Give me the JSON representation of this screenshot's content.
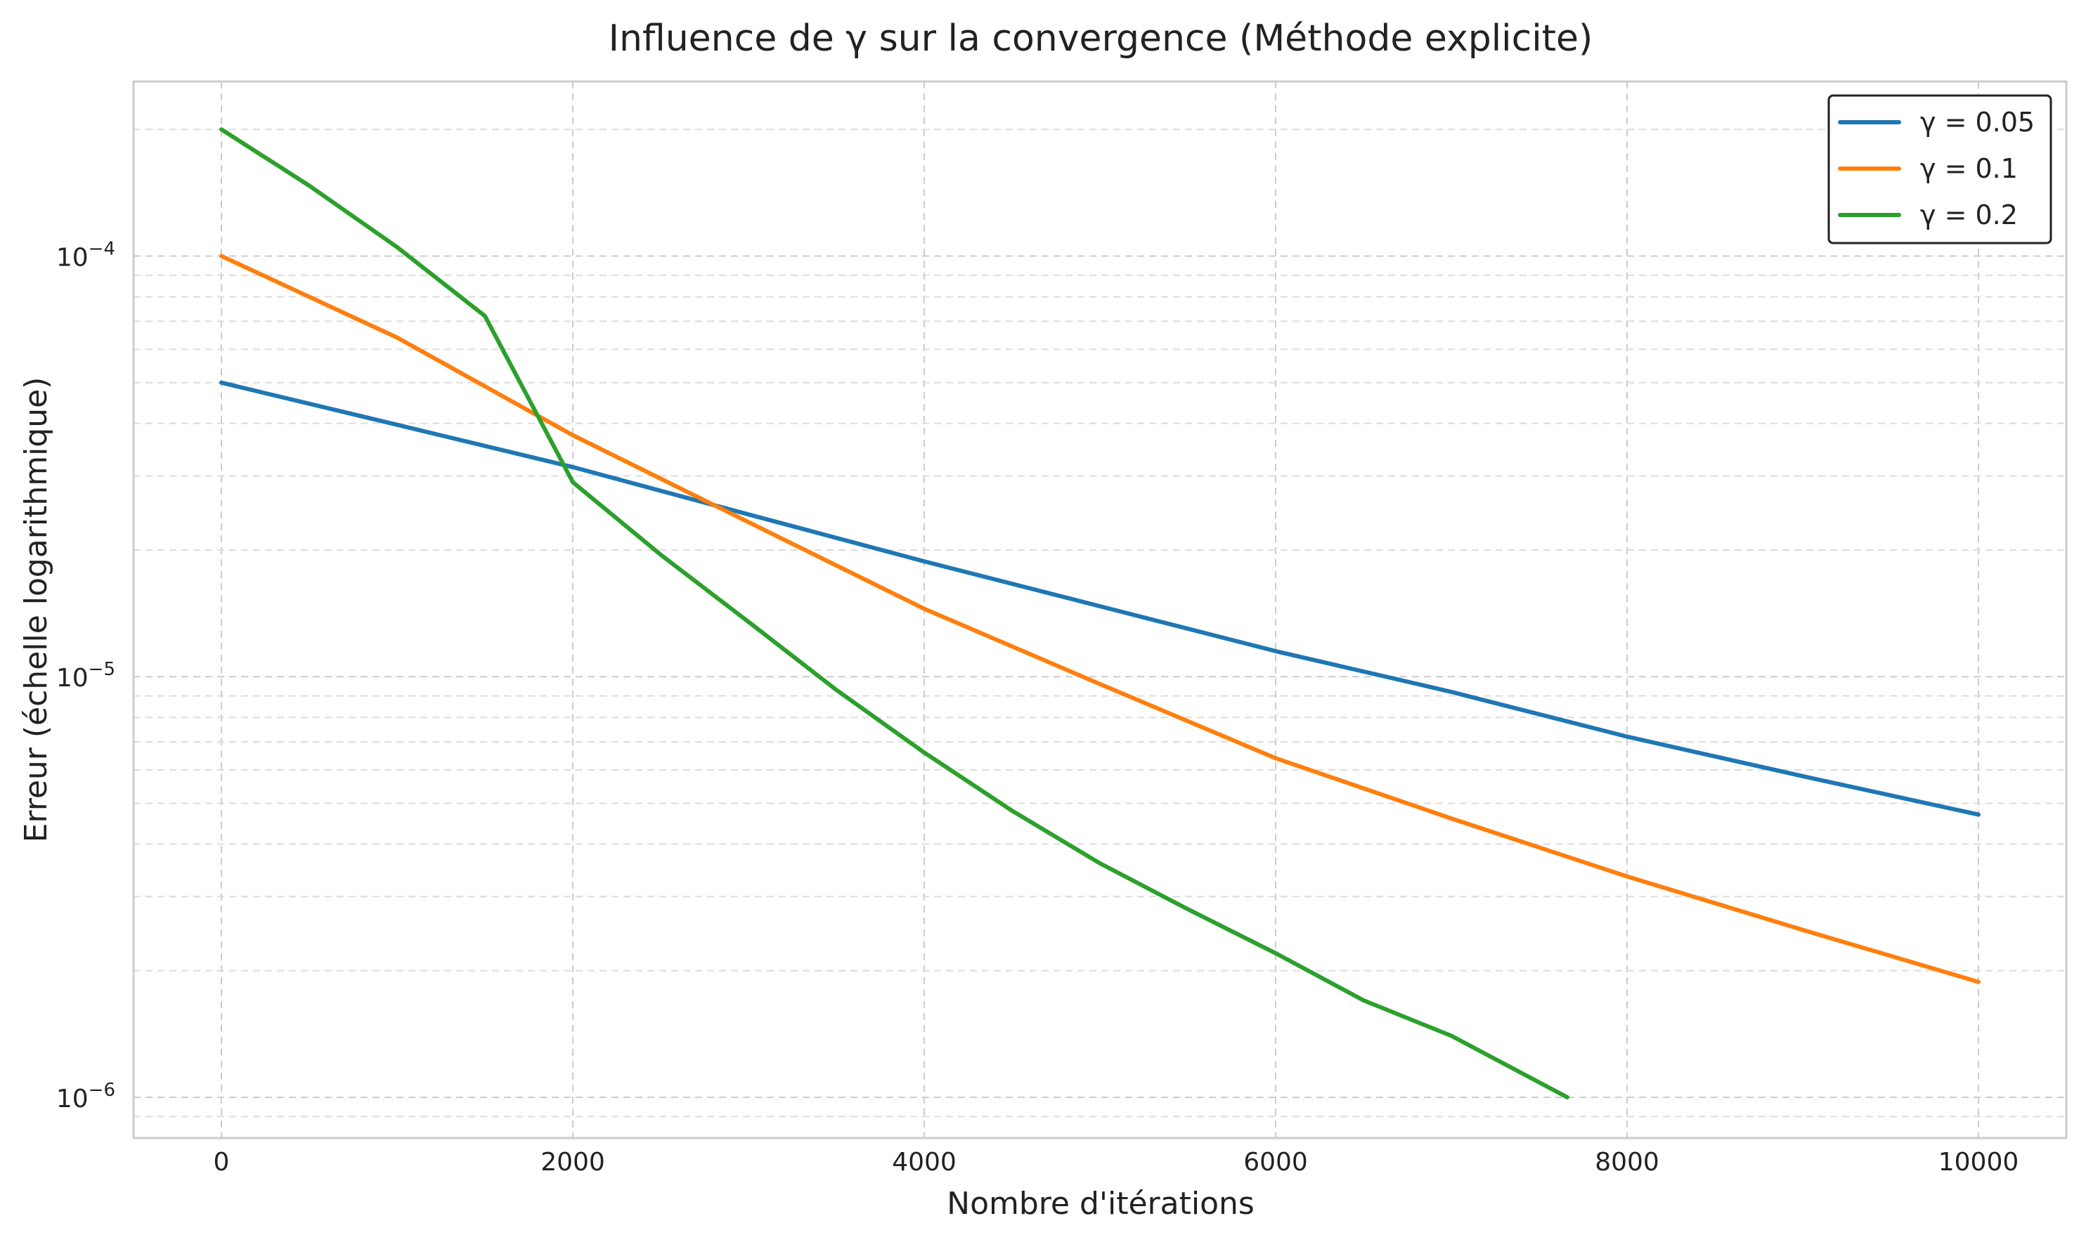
{
  "chart_data": {
    "type": "line",
    "title": "Influence de γ sur la convergence (Méthode explicite)",
    "xlabel": "Nombre d'itérations",
    "ylabel": "Erreur (échelle logarithmique)",
    "xlim": [
      -500,
      10500
    ],
    "ylim": [
      8e-07,
      0.00026
    ],
    "yscale": "log",
    "grid": true,
    "legend_position": "top-right",
    "x_ticks": [
      0,
      2000,
      4000,
      6000,
      8000,
      10000
    ],
    "x_tick_labels": [
      "0",
      "2000",
      "4000",
      "6000",
      "8000",
      "10000"
    ],
    "y_ticks": [
      1e-06,
      1e-05,
      0.0001
    ],
    "y_tick_labels": [
      {
        "base": "10",
        "exp": "−6"
      },
      {
        "base": "10",
        "exp": "−5"
      },
      {
        "base": "10",
        "exp": "−4"
      }
    ],
    "series": [
      {
        "name": "γ = 0.05",
        "color": "#1f77b4",
        "x": [
          0,
          1000,
          2000,
          3000,
          4000,
          5000,
          6000,
          7000,
          8000,
          9000,
          10000
        ],
        "y": [
          5e-05,
          3.97e-05,
          3.15e-05,
          2.43e-05,
          1.88e-05,
          1.47e-05,
          1.15e-05,
          9.2e-06,
          7.2e-06,
          5.8e-06,
          4.7e-06
        ]
      },
      {
        "name": "γ = 0.1",
        "color": "#ff7f0e",
        "x": [
          0,
          1000,
          2000,
          3000,
          4000,
          5000,
          6000,
          7000,
          8000,
          9000,
          10000
        ],
        "y": [
          0.0001,
          6.4e-05,
          3.75e-05,
          2.33e-05,
          1.45e-05,
          9.6e-06,
          6.4e-06,
          4.6e-06,
          3.35e-06,
          2.5e-06,
          1.88e-06
        ]
      },
      {
        "name": "γ = 0.2",
        "color": "#2ca02c",
        "x": [
          0,
          500,
          1000,
          1500,
          2000,
          2500,
          3000,
          3500,
          4000,
          4500,
          5000,
          5500,
          6000,
          6500,
          7000,
          7660
        ],
        "y": [
          0.0002,
          0.000147,
          0.000105,
          7.2e-05,
          2.9e-05,
          1.95e-05,
          1.35e-05,
          9.3e-06,
          6.6e-06,
          4.8e-06,
          3.6e-06,
          2.8e-06,
          2.2e-06,
          1.7e-06,
          1.4e-06,
          1e-06
        ]
      }
    ]
  }
}
